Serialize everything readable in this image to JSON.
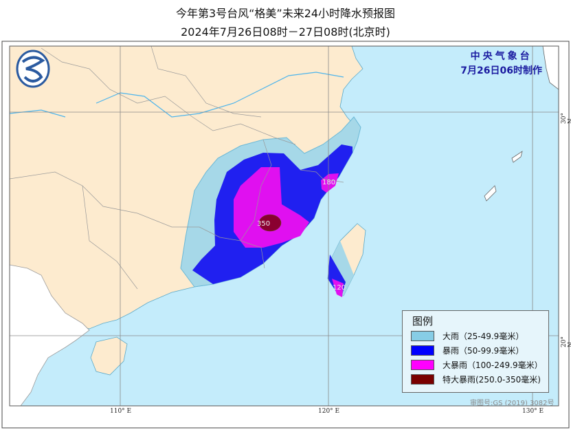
{
  "title": "今年第3号台风“格美”未来24小时降水预报图",
  "subtitle": "2024年7月26日08时－27日08时(北京时)",
  "agency": {
    "name": "中央气象台",
    "issued": "7月26日06时制作"
  },
  "axes": {
    "lon_labels": [
      "110° E",
      "120° E",
      "130° E"
    ],
    "lat_labels": [
      "30° N",
      "20° N"
    ]
  },
  "legend": {
    "title": "图例",
    "items": [
      {
        "label": "大雨（25-49.9毫米）",
        "color": "#87cde6"
      },
      {
        "label": "暴雨（50-99.9毫米）",
        "color": "#0000ff"
      },
      {
        "label": "大暴雨（100-249.9毫米）",
        "color": "#ff00ff"
      },
      {
        "label": "特大暴雨(250.0-350毫米)",
        "color": "#7a0000"
      }
    ]
  },
  "max_labels": [
    "350",
    "180",
    "120"
  ],
  "approval_number": "审图号:GS (2019) 3082号",
  "colors": {
    "sea": "#c4ecfb",
    "land": "#fdebcf",
    "foreign_land": "#ffffff",
    "river": "#4cb4ec",
    "border": "#999999"
  }
}
